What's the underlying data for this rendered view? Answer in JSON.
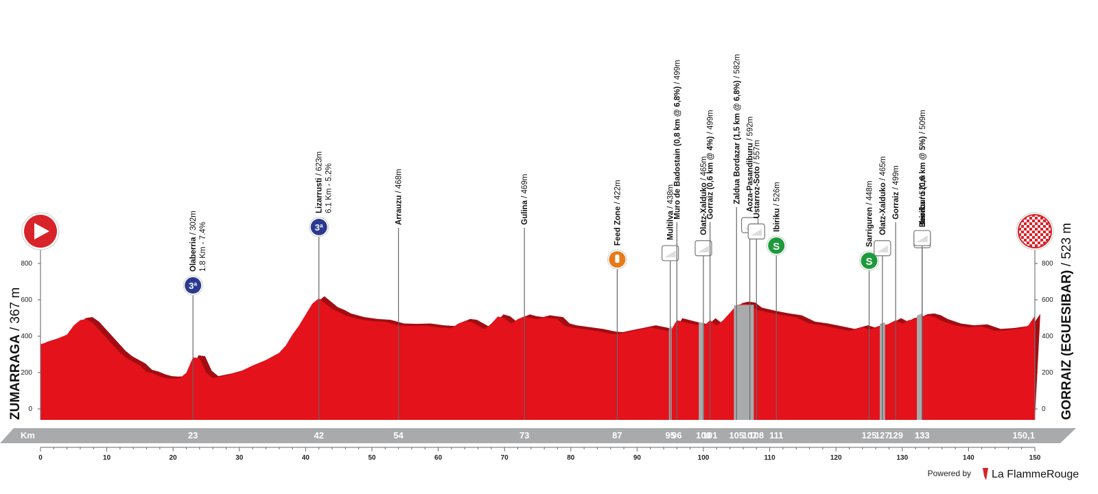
{
  "chart_data": {
    "type": "area",
    "xlabel": "Km",
    "xlim": [
      0,
      150
    ],
    "ylim": [
      0,
      900
    ],
    "x_ticks": [
      0,
      10,
      20,
      30,
      40,
      50,
      60,
      70,
      80,
      90,
      100,
      110,
      120,
      130,
      140,
      150
    ],
    "y_ticks": [
      0,
      200,
      400,
      600,
      800
    ],
    "start": {
      "name": "ZUMARRAGA",
      "altitude": "/ 367 m",
      "km": 0
    },
    "finish": {
      "name": "GORRAIZ (EGUESIBAR)",
      "altitude": "/ 523 m",
      "km_label": "150,1"
    },
    "km_markers": [
      "23",
      "42",
      "54",
      "73",
      "87",
      "95",
      "96",
      "100",
      "101",
      "105",
      "107",
      "108",
      "111",
      "125",
      "127",
      "129",
      "133",
      "133"
    ],
    "profile": {
      "x": [
        0,
        2,
        4,
        5,
        6,
        7,
        8,
        9,
        10,
        11,
        12,
        13,
        14,
        15,
        16,
        17,
        18,
        19,
        20,
        21,
        22,
        23,
        24,
        25,
        26,
        28,
        30,
        32,
        34,
        36,
        37,
        38,
        39,
        40,
        41,
        42,
        43,
        44,
        45,
        46,
        48,
        50,
        52,
        54,
        56,
        58,
        60,
        62,
        63,
        64,
        65,
        66,
        67,
        68,
        69,
        70,
        71,
        72,
        73,
        74,
        75,
        76,
        77,
        78,
        79,
        80,
        82,
        84,
        86,
        87,
        88,
        90,
        92,
        94,
        95,
        96,
        98,
        100,
        101,
        102,
        103,
        104,
        105,
        106,
        107,
        108,
        110,
        112,
        114,
        116,
        118,
        120,
        122,
        124,
        125,
        126,
        127,
        128,
        129,
        130,
        131,
        132,
        133,
        134,
        135,
        136,
        138,
        140,
        142,
        144,
        146,
        148,
        149,
        150
      ],
      "y": [
        367,
        390,
        420,
        470,
        500,
        505,
        480,
        440,
        400,
        360,
        320,
        290,
        270,
        250,
        215,
        205,
        190,
        180,
        178,
        180,
        210,
        295,
        290,
        210,
        180,
        195,
        215,
        250,
        280,
        320,
        360,
        420,
        470,
        530,
        590,
        620,
        590,
        560,
        545,
        525,
        505,
        495,
        490,
        470,
        468,
        470,
        460,
        455,
        480,
        495,
        490,
        470,
        450,
        480,
        520,
        510,
        480,
        505,
        520,
        510,
        505,
        515,
        510,
        505,
        470,
        460,
        450,
        440,
        425,
        422,
        430,
        445,
        460,
        445,
        438,
        499,
        480,
        465,
        499,
        470,
        500,
        540,
        582,
        590,
        585,
        557,
        540,
        526,
        515,
        480,
        470,
        455,
        440,
        460,
        448,
        460,
        465,
        480,
        499,
        480,
        500,
        505,
        521,
        525,
        515,
        495,
        470,
        460,
        465,
        440,
        445,
        455,
        470,
        523
      ]
    },
    "points": [
      {
        "km": 23,
        "alt": 302,
        "name": "Olaberria",
        "info": "/ 302m",
        "extra": "1.8 Km - 7.4%",
        "marker": "cat3",
        "badge": "3ª"
      },
      {
        "km": 42,
        "alt": 623,
        "name": "Lizarrusti",
        "info": "/ 623m",
        "extra": "6.1 Km - 5.2%",
        "marker": "cat3",
        "badge": "3ª"
      },
      {
        "km": 54,
        "alt": 468,
        "name": "Arrauzu",
        "info": "/ 468m",
        "extra": "",
        "marker": "none",
        "badge": ""
      },
      {
        "km": 73,
        "alt": 469,
        "name": "Gulina",
        "info": "/ 469m",
        "extra": "",
        "marker": "none",
        "badge": ""
      },
      {
        "km": 87,
        "alt": 422,
        "name": "Feed Zone",
        "info": "/ 422m",
        "extra": "",
        "marker": "feed",
        "badge": ""
      },
      {
        "km": 95,
        "alt": 438,
        "name": "Multilva",
        "info": "/ 438m",
        "extra": "",
        "marker": "ramp",
        "badge": ""
      },
      {
        "km": 96,
        "alt": 499,
        "name": "Muro de Badostain (0,8 km @ 6,8%)",
        "info": "/ 499m",
        "extra": "",
        "marker": "none",
        "badge": ""
      },
      {
        "km": 100,
        "alt": 465,
        "name": "Olatz-Xalduko",
        "info": "/ 465m",
        "extra": "",
        "marker": "ramp",
        "badge": ""
      },
      {
        "km": 101,
        "alt": 499,
        "name": "Gorraiz (0,6 km @ 4%)",
        "info": "/ 499m",
        "extra": "",
        "marker": "none",
        "badge": ""
      },
      {
        "km": 105,
        "alt": 582,
        "name": "Zaldua Bordazar (1,5 km @ 6,8%)",
        "info": "/ 582m",
        "extra": "",
        "marker": "none",
        "badge": ""
      },
      {
        "km": 107,
        "alt": 592,
        "name": "Aoza-Pasandiburu",
        "info": "/ 592m",
        "extra": "",
        "marker": "ramp",
        "badge": ""
      },
      {
        "km": 108,
        "alt": 557,
        "name": "Ustarroz-Soto",
        "info": "/ 557m",
        "extra": "",
        "marker": "ramp",
        "badge": ""
      },
      {
        "km": 111,
        "alt": 526,
        "name": "Ibiriku",
        "info": "/ 526m",
        "extra": "",
        "marker": "sprint",
        "badge": "S"
      },
      {
        "km": 125,
        "alt": 448,
        "name": "Sarriguren",
        "info": "/ 448m",
        "extra": "",
        "marker": "sprint",
        "badge": "S"
      },
      {
        "km": 127,
        "alt": 465,
        "name": "Olatz-Xalduko",
        "info": "/ 465m",
        "extra": "",
        "marker": "ramp",
        "badge": ""
      },
      {
        "km": 129,
        "alt": 499,
        "name": "Gorraiz",
        "info": "/ 499m",
        "extra": "",
        "marker": "none",
        "badge": ""
      },
      {
        "km": 133,
        "alt": 509,
        "name": "Beorburu (0,6 km @ 5%)",
        "info": "/ 509m",
        "extra": "",
        "marker": "ramp",
        "badge": ""
      },
      {
        "km": 133,
        "alt": 521,
        "name": "Ibiriku",
        "info": "/ 521m",
        "extra": "",
        "marker": "ramp",
        "badge": ""
      }
    ]
  },
  "footer": {
    "powered_by": "Powered by",
    "brand": "La FlammeRouge"
  },
  "colors": {
    "profile": "#e3121b",
    "profile_shadow": "#a30d12",
    "bar": "#a8aaab",
    "climb_badge": "#2b3a8f",
    "sprint": "#1e9a3c",
    "feed": "#e8791a",
    "start_flag": "#d8232a"
  },
  "icons": {
    "start": "play-arrow-icon",
    "finish": "checkered-flag-icon",
    "feed": "bottle-icon",
    "ramp": "ramp-box-icon"
  }
}
